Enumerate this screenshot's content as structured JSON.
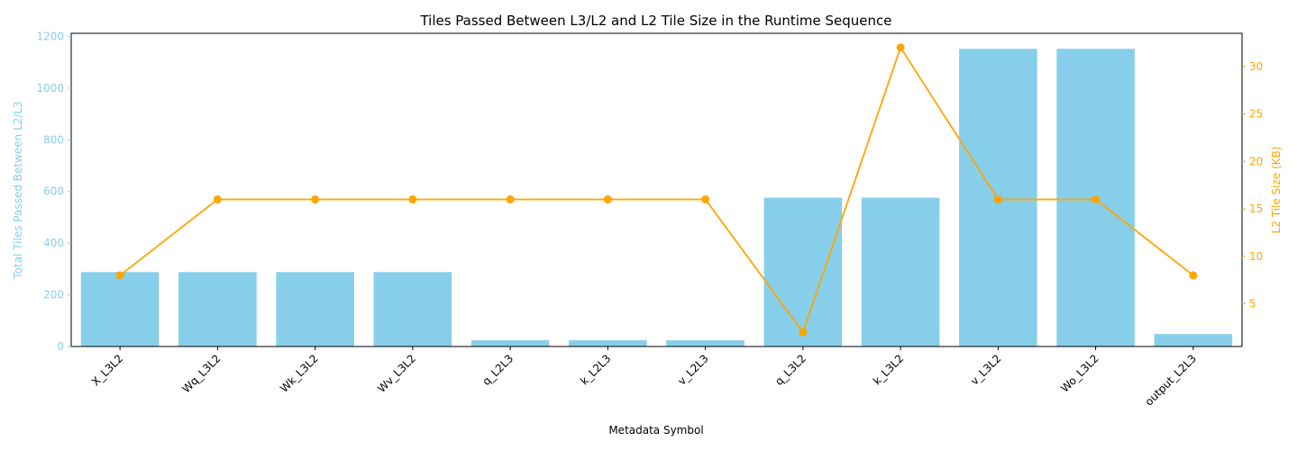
{
  "chart_data": {
    "type": "bar",
    "title": "Tiles Passed Between L3/L2 and L2 Tile Size in the Runtime Sequence",
    "xlabel": "Metadata Symbol",
    "ylabel_left": "Total Tiles Passed Between L2/L3",
    "ylabel_right": "L2 Tile Size (KB)",
    "categories": [
      "X_L3L2",
      "Wq_L3L2",
      "Wk_L3L2",
      "Wv_L3L2",
      "q_L2L3",
      "k_L2L3",
      "v_L2L3",
      "q_L3L2",
      "k_L3L2",
      "v_L3L2",
      "Wo_L3L2",
      "output_L2L3"
    ],
    "series": [
      {
        "type": "bar",
        "axis": "left",
        "color": "#87CEEB",
        "values": [
          288,
          288,
          288,
          288,
          24,
          24,
          24,
          576,
          576,
          1152,
          1152,
          48
        ]
      },
      {
        "type": "line",
        "axis": "right",
        "color": "#FFA500",
        "marker": "circle",
        "values": [
          8,
          16,
          16,
          16,
          16,
          16,
          16,
          2,
          32,
          16,
          16,
          8
        ]
      }
    ],
    "ylim_left": [
      0,
      1212
    ],
    "yticks_left": [
      0,
      200,
      400,
      600,
      800,
      1000,
      1200
    ],
    "ylim_right": [
      0.5,
      33.5
    ],
    "yticks_right": [
      5,
      10,
      15,
      20,
      25,
      30
    ],
    "left_axis_color": "#87CEEB",
    "right_axis_color": "#FFA500",
    "grid": false
  }
}
